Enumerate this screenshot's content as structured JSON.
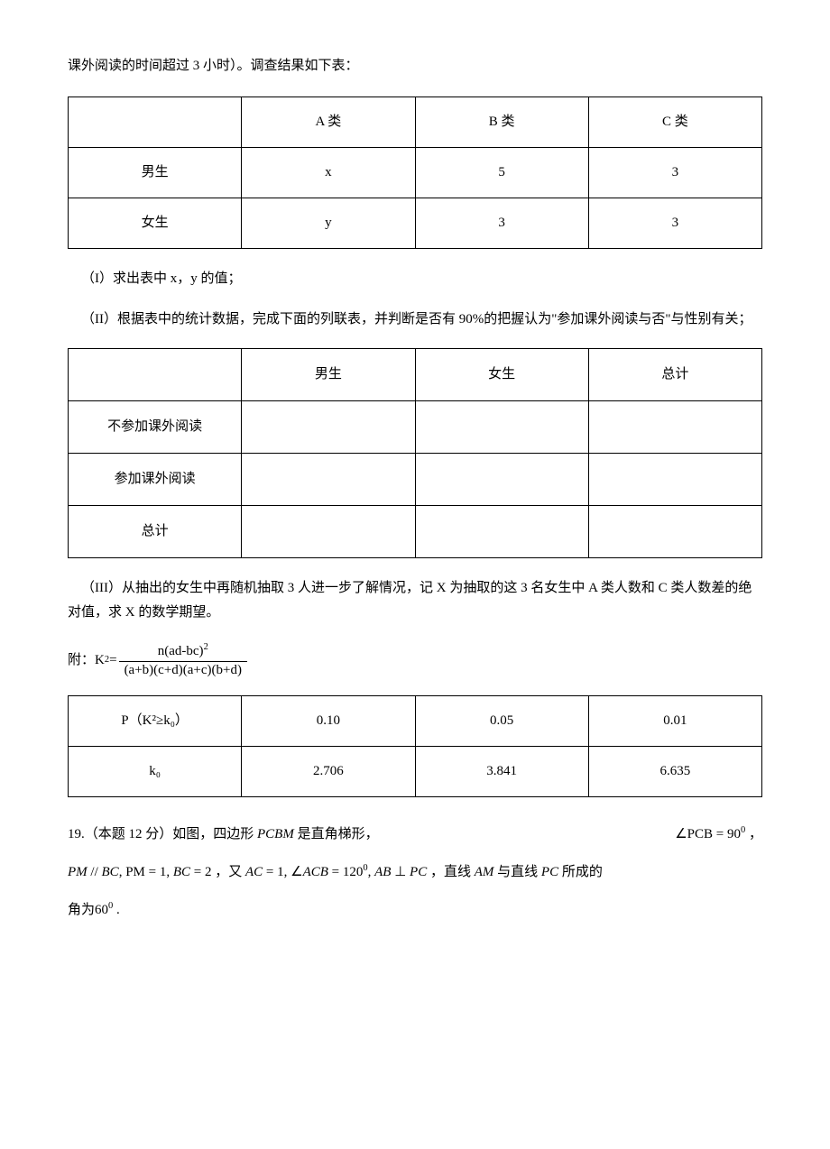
{
  "intro_line": "课外阅读的时间超过 3 小时）。调查结果如下表：",
  "table1": {
    "headers": [
      "",
      "A 类",
      "B 类",
      "C 类"
    ],
    "rows": [
      [
        "男生",
        "x",
        "5",
        "3"
      ],
      [
        "女生",
        "y",
        "3",
        "3"
      ]
    ]
  },
  "part1_text": "（I）求出表中 x，y 的值；",
  "part2_text": "（II）根据表中的统计数据，完成下面的列联表，并判断是否有 90%的把握认为\"参加课外阅读与否\"与性别有关；",
  "table2": {
    "headers": [
      "",
      "男生",
      "女生",
      "总计"
    ],
    "rows": [
      [
        "不参加课外阅读",
        "",
        "",
        ""
      ],
      [
        "参加课外阅读",
        "",
        "",
        ""
      ],
      [
        "总计",
        "",
        "",
        ""
      ]
    ]
  },
  "part3_text": "（III）从抽出的女生中再随机抽取 3 人进一步了解情况，记 X 为抽取的这 3 名女生中 A 类人数和 C 类人数差的绝对值，求 X 的数学期望。",
  "formula_prefix": "附：K",
  "formula_sup": "2",
  "formula_eq": "=",
  "formula_num": "n(ad-bc)",
  "formula_num_sup": "2",
  "formula_den": "(a+b)(c+d)(a+c)(b+d)",
  "table3": {
    "headers": [
      "P（K²≥k₀）",
      "0.10",
      "0.05",
      "0.01"
    ],
    "rows": [
      [
        "k₀",
        "2.706",
        "3.841",
        "6.635"
      ]
    ]
  },
  "q19": {
    "prefix": "19.（本题 12 分）如图，四边形 ",
    "shape": "PCBM",
    "text1": " 是直角梯形，",
    "angle_expr": "∠PCB = 90",
    "angle_sup": "0",
    "comma": " ，",
    "line2_a": "PM",
    "line2_parallel": " // ",
    "line2_b": "BC",
    "line2_c": ", PM",
    "line2_d": " = 1, ",
    "line2_e": "BC",
    "line2_f": " = 2 ，又 ",
    "line2_g": "AC",
    "line2_h": " = 1, ∠",
    "line2_i": "ACB",
    "line2_j": " = 120",
    "line2_j_sup": "0",
    "line2_k": ", ",
    "line2_l": "AB",
    "line2_m": " ⊥ ",
    "line2_n": "PC",
    "line2_o": " ，直线 ",
    "line2_p": "AM",
    "line2_q": " 与直线 ",
    "line2_r": "PC",
    "line2_s": " 所成的",
    "line3_a": "角为",
    "line3_b": "60",
    "line3_sup": "0",
    "line3_c": " ."
  }
}
